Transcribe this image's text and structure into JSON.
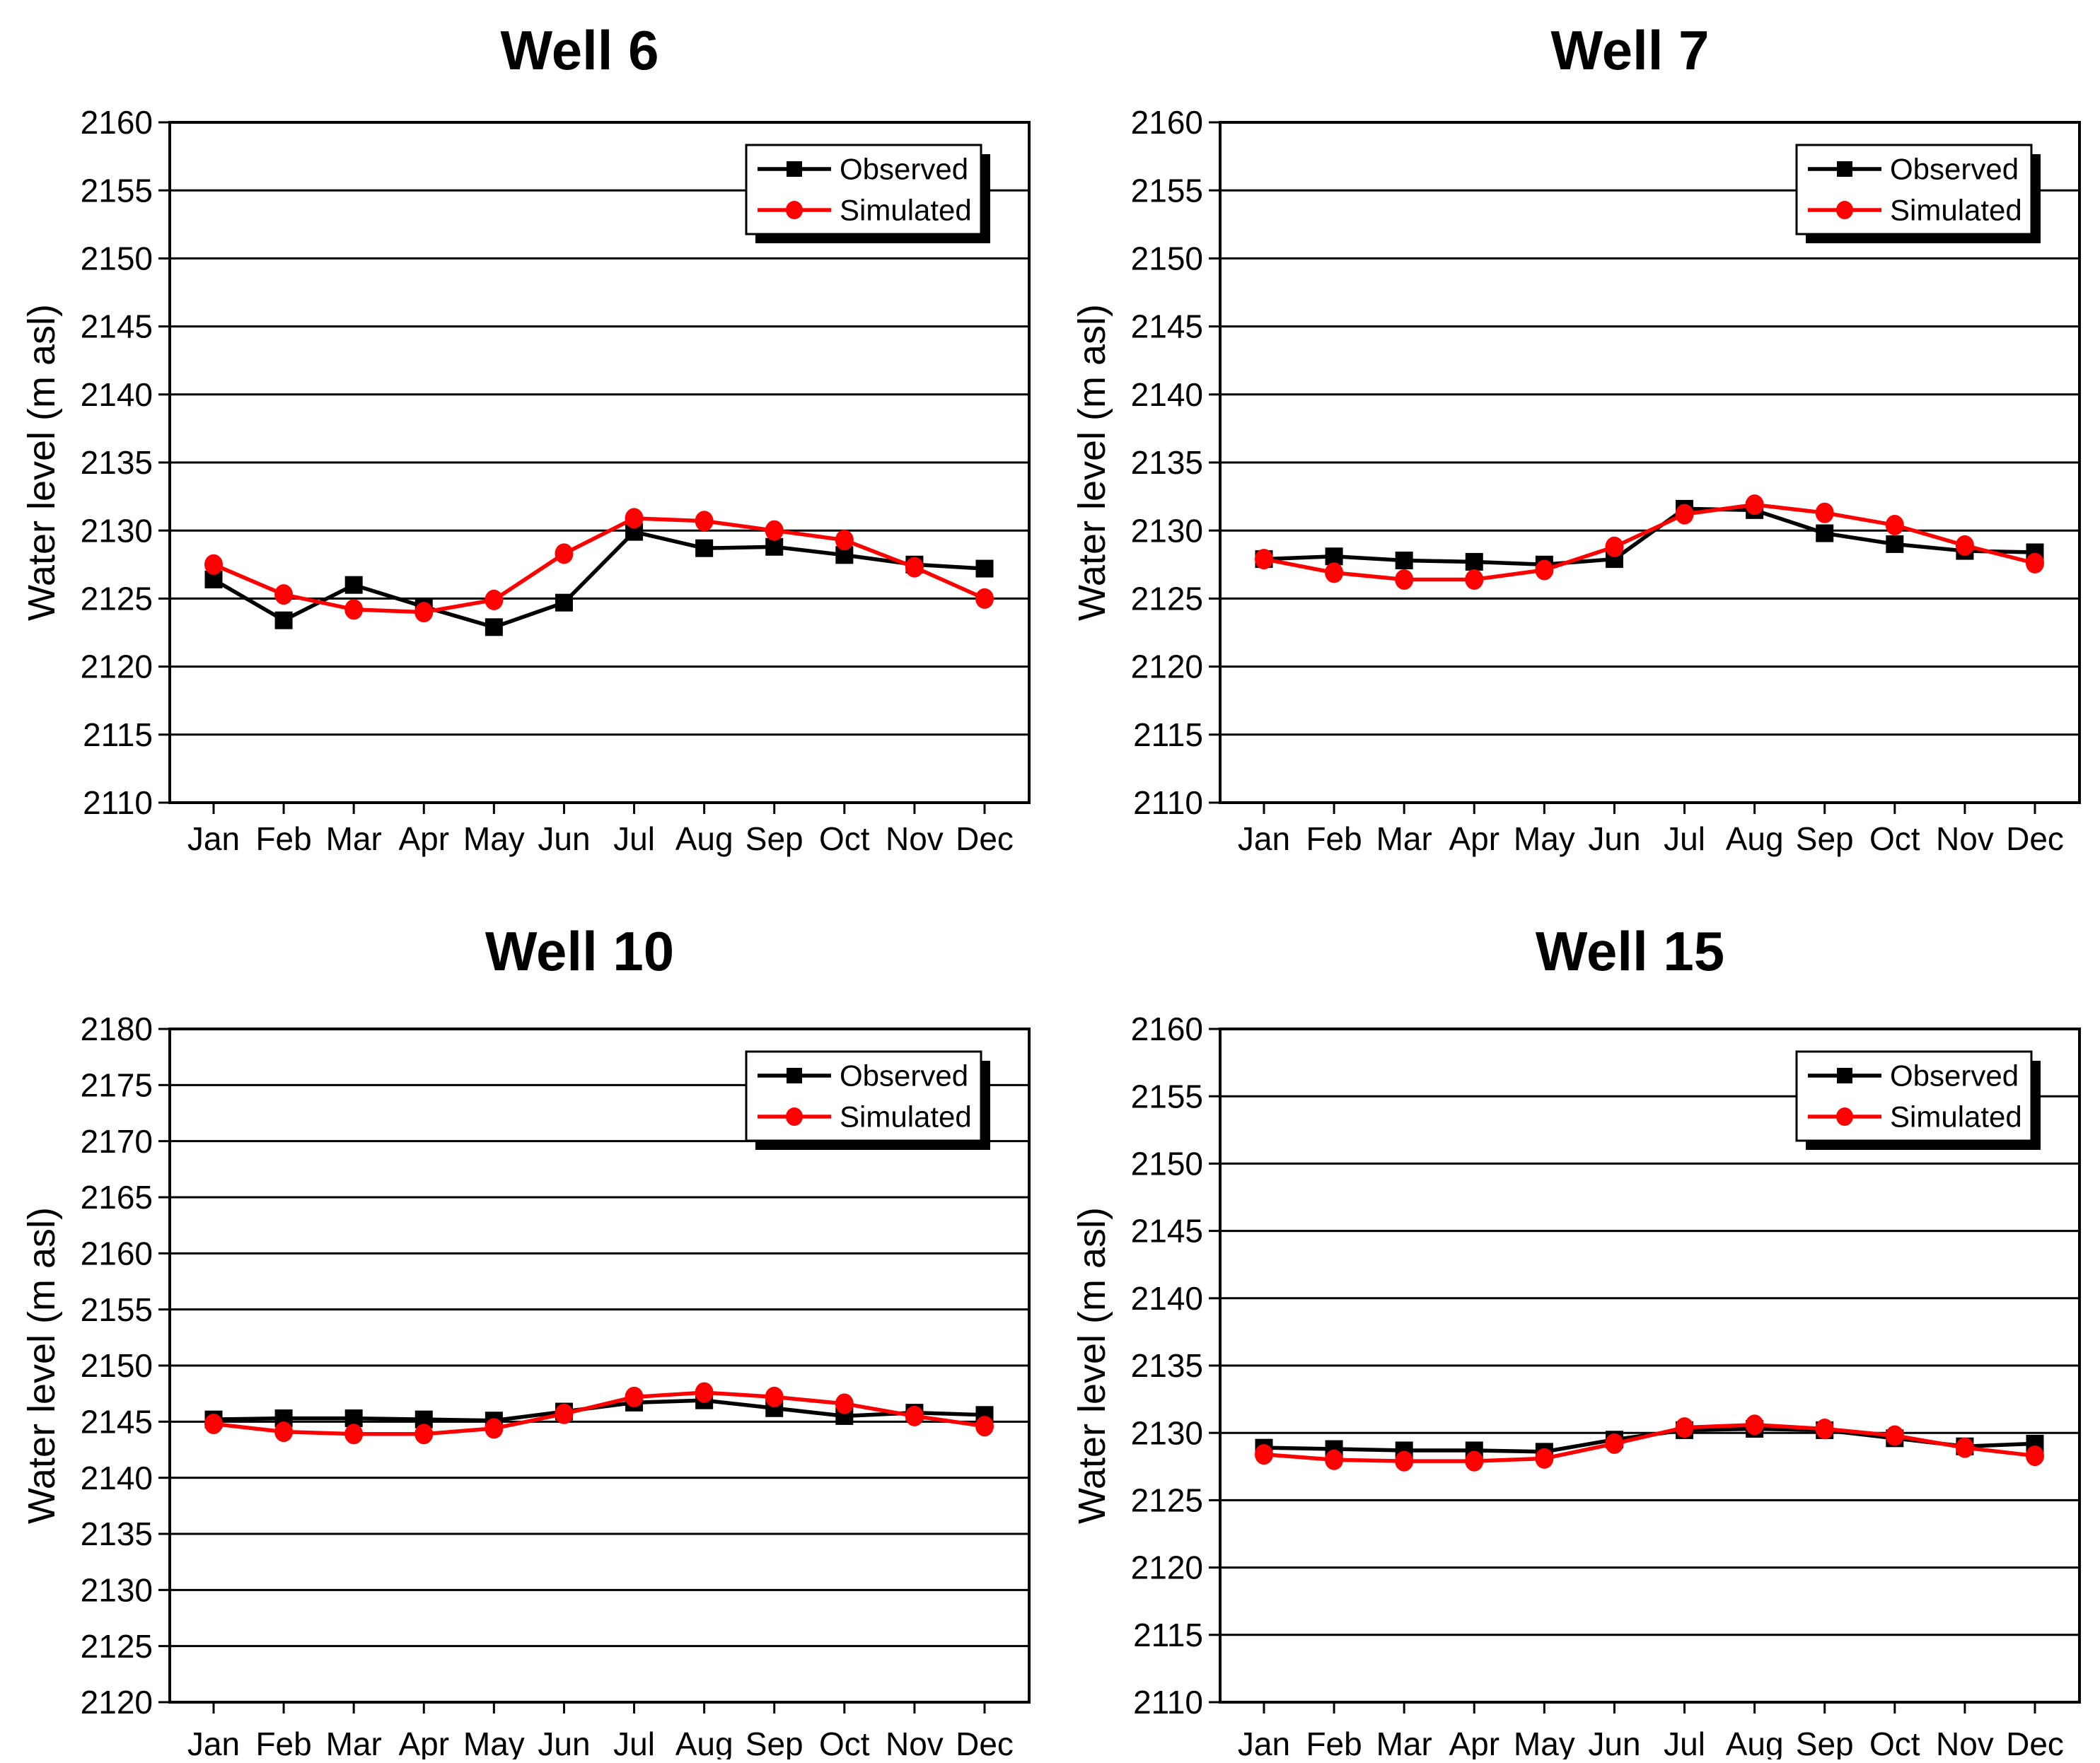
{
  "page": {
    "background": "#ffffff"
  },
  "colors": {
    "observed": "#000000",
    "simulated": "#ff0000",
    "grid": "#000000",
    "axis": "#000000",
    "legend_shadow": "#000000",
    "legend_background": "#ffffff"
  },
  "legend": {
    "position": "top-right",
    "observed_label": "Observed",
    "simulated_label": "Simulated"
  },
  "axis": {
    "ylabel": "Water level (m asl)",
    "xlabel": ""
  },
  "months": [
    "Jan",
    "Feb",
    "Mar",
    "Apr",
    "May",
    "Jun",
    "Jul",
    "Aug",
    "Sep",
    "Oct",
    "Nov",
    "Dec"
  ],
  "chart_data": [
    {
      "type": "line",
      "title": "Well 6",
      "xlabel": "",
      "ylabel": "Water level (m asl)",
      "categories": [
        "Jan",
        "Feb",
        "Mar",
        "Apr",
        "May",
        "Jun",
        "Jul",
        "Aug",
        "Sep",
        "Oct",
        "Nov",
        "Dec"
      ],
      "ylim": [
        2110,
        2160
      ],
      "ytick_step": 5,
      "grid": true,
      "legend_position": "top-right",
      "series": [
        {
          "name": "Observed",
          "color": "#000000",
          "marker": "square",
          "values": [
            2126.4,
            2123.4,
            2126.0,
            2124.4,
            2122.9,
            2124.7,
            2129.9,
            2128.7,
            2128.8,
            2128.2,
            2127.5,
            2127.2
          ]
        },
        {
          "name": "Simulated",
          "color": "#ff0000",
          "marker": "circle",
          "values": [
            2127.5,
            2125.3,
            2124.2,
            2124.0,
            2124.9,
            2128.3,
            2130.9,
            2130.7,
            2130.0,
            2129.3,
            2127.3,
            2125.0
          ]
        }
      ]
    },
    {
      "type": "line",
      "title": "Well 7",
      "xlabel": "",
      "ylabel": "Water level (m asl)",
      "categories": [
        "Jan",
        "Feb",
        "Mar",
        "Apr",
        "May",
        "Jun",
        "Jul",
        "Aug",
        "Sep",
        "Oct",
        "Nov",
        "Dec"
      ],
      "ylim": [
        2110,
        2160
      ],
      "ytick_step": 5,
      "grid": true,
      "legend_position": "top-right",
      "series": [
        {
          "name": "Observed",
          "color": "#000000",
          "marker": "square",
          "values": [
            2127.9,
            2128.1,
            2127.8,
            2127.7,
            2127.5,
            2127.9,
            2131.6,
            2131.5,
            2129.8,
            2129.0,
            2128.5,
            2128.4
          ]
        },
        {
          "name": "Simulated",
          "color": "#ff0000",
          "marker": "circle",
          "values": [
            2127.9,
            2126.9,
            2126.4,
            2126.4,
            2127.1,
            2128.8,
            2131.2,
            2131.9,
            2131.3,
            2130.4,
            2128.9,
            2127.6
          ]
        }
      ]
    },
    {
      "type": "line",
      "title": "Well 10",
      "xlabel": "",
      "ylabel": "Water level (m asl)",
      "categories": [
        "Jan",
        "Feb",
        "Mar",
        "Apr",
        "May",
        "Jun",
        "Jul",
        "Aug",
        "Sep",
        "Oct",
        "Nov",
        "Dec"
      ],
      "ylim": [
        2120,
        2180
      ],
      "ytick_step": 5,
      "grid": true,
      "legend_position": "top-right",
      "series": [
        {
          "name": "Observed",
          "color": "#000000",
          "marker": "square",
          "values": [
            2145.2,
            2145.3,
            2145.3,
            2145.2,
            2145.1,
            2145.9,
            2146.7,
            2146.9,
            2146.2,
            2145.5,
            2145.8,
            2145.6
          ]
        },
        {
          "name": "Simulated",
          "color": "#ff0000",
          "marker": "circle",
          "values": [
            2144.8,
            2144.1,
            2143.9,
            2143.9,
            2144.4,
            2145.7,
            2147.2,
            2147.6,
            2147.2,
            2146.6,
            2145.5,
            2144.6
          ]
        }
      ]
    },
    {
      "type": "line",
      "title": "Well 15",
      "xlabel": "",
      "ylabel": "Water level (m asl)",
      "categories": [
        "Jan",
        "Feb",
        "Mar",
        "Apr",
        "May",
        "Jun",
        "Jul",
        "Aug",
        "Sep",
        "Oct",
        "Nov",
        "Dec"
      ],
      "ylim": [
        2110,
        2160
      ],
      "ytick_step": 5,
      "grid": true,
      "legend_position": "top-right",
      "series": [
        {
          "name": "Observed",
          "color": "#000000",
          "marker": "square",
          "values": [
            2128.9,
            2128.8,
            2128.7,
            2128.7,
            2128.6,
            2129.5,
            2130.2,
            2130.3,
            2130.2,
            2129.6,
            2129.0,
            2129.2
          ]
        },
        {
          "name": "Simulated",
          "color": "#ff0000",
          "marker": "circle",
          "values": [
            2128.4,
            2128.0,
            2127.9,
            2127.9,
            2128.1,
            2129.2,
            2130.4,
            2130.6,
            2130.3,
            2129.8,
            2128.9,
            2128.3
          ]
        }
      ]
    }
  ]
}
